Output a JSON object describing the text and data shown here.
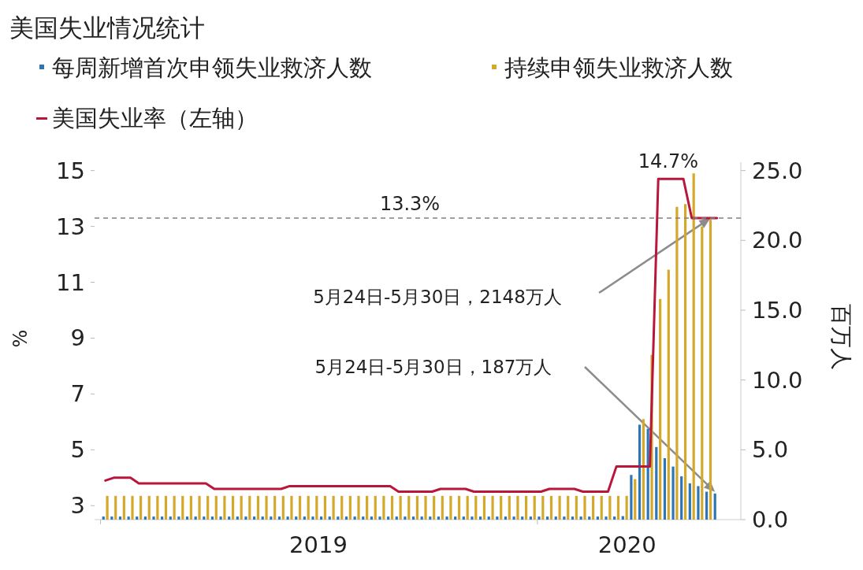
{
  "chart_data": {
    "type": "bar",
    "title": "美国失业情况统计",
    "x": [
      "2019-01-05",
      "2019-01-12",
      "2019-01-19",
      "2019-01-26",
      "2019-02-02",
      "2019-02-09",
      "2019-02-16",
      "2019-02-23",
      "2019-03-02",
      "2019-03-09",
      "2019-03-16",
      "2019-03-23",
      "2019-03-30",
      "2019-04-06",
      "2019-04-13",
      "2019-04-20",
      "2019-04-27",
      "2019-05-04",
      "2019-05-11",
      "2019-05-18",
      "2019-05-25",
      "2019-06-01",
      "2019-06-08",
      "2019-06-15",
      "2019-06-22",
      "2019-06-29",
      "2019-07-06",
      "2019-07-13",
      "2019-07-20",
      "2019-07-27",
      "2019-08-03",
      "2019-08-10",
      "2019-08-17",
      "2019-08-24",
      "2019-08-31",
      "2019-09-07",
      "2019-09-14",
      "2019-09-21",
      "2019-09-28",
      "2019-10-05",
      "2019-10-12",
      "2019-10-19",
      "2019-10-26",
      "2019-11-02",
      "2019-11-09",
      "2019-11-16",
      "2019-11-23",
      "2019-11-30",
      "2019-12-07",
      "2019-12-14",
      "2019-12-21",
      "2019-12-28",
      "2020-01-04",
      "2020-01-11",
      "2020-01-18",
      "2020-01-25",
      "2020-02-01",
      "2020-02-08",
      "2020-02-15",
      "2020-02-22",
      "2020-02-29",
      "2020-03-07",
      "2020-03-14",
      "2020-03-21",
      "2020-03-28",
      "2020-04-04",
      "2020-04-11",
      "2020-04-18",
      "2020-04-25",
      "2020-05-02",
      "2020-05-09",
      "2020-05-16",
      "2020-05-23",
      "2020-05-30"
    ],
    "series": [
      {
        "name": "每周新增首次申领失业救济人数",
        "axis": "y2",
        "color": "#2e75b6",
        "values": [
          0.22,
          0.22,
          0.22,
          0.22,
          0.22,
          0.22,
          0.22,
          0.22,
          0.22,
          0.22,
          0.22,
          0.22,
          0.22,
          0.22,
          0.22,
          0.22,
          0.22,
          0.22,
          0.22,
          0.22,
          0.22,
          0.22,
          0.22,
          0.22,
          0.22,
          0.22,
          0.22,
          0.22,
          0.22,
          0.22,
          0.22,
          0.22,
          0.22,
          0.22,
          0.22,
          0.22,
          0.22,
          0.22,
          0.22,
          0.22,
          0.22,
          0.22,
          0.22,
          0.22,
          0.22,
          0.22,
          0.22,
          0.22,
          0.22,
          0.22,
          0.22,
          0.22,
          0.22,
          0.22,
          0.22,
          0.22,
          0.22,
          0.22,
          0.22,
          0.22,
          0.22,
          0.22,
          0.25,
          3.2,
          6.8,
          6.5,
          5.2,
          4.4,
          3.8,
          3.1,
          2.6,
          2.4,
          2.0,
          1.87
        ]
      },
      {
        "name": "持续申领失业救济人数",
        "axis": "y2",
        "color": "#d4a82a",
        "values": [
          1.7,
          1.7,
          1.7,
          1.7,
          1.7,
          1.7,
          1.7,
          1.7,
          1.7,
          1.7,
          1.7,
          1.7,
          1.7,
          1.7,
          1.7,
          1.7,
          1.7,
          1.7,
          1.7,
          1.7,
          1.7,
          1.7,
          1.7,
          1.7,
          1.7,
          1.7,
          1.7,
          1.7,
          1.7,
          1.7,
          1.7,
          1.7,
          1.7,
          1.7,
          1.7,
          1.7,
          1.7,
          1.7,
          1.7,
          1.7,
          1.7,
          1.7,
          1.7,
          1.7,
          1.7,
          1.7,
          1.7,
          1.7,
          1.7,
          1.7,
          1.7,
          1.7,
          1.7,
          1.7,
          1.7,
          1.7,
          1.7,
          1.7,
          1.7,
          1.7,
          1.7,
          1.7,
          1.7,
          2.9,
          7.2,
          11.8,
          15.8,
          17.9,
          22.4,
          22.6,
          24.8,
          21.0,
          21.48,
          null
        ]
      },
      {
        "name": "美国失业率（左轴）",
        "type": "line",
        "color": "#b8173b",
        "values": [
          3.9,
          4.0,
          4.0,
          4.0,
          3.8,
          3.8,
          3.8,
          3.8,
          3.8,
          3.8,
          3.8,
          3.8,
          3.8,
          3.6,
          3.6,
          3.6,
          3.6,
          3.6,
          3.6,
          3.6,
          3.6,
          3.6,
          3.7,
          3.7,
          3.7,
          3.7,
          3.7,
          3.7,
          3.7,
          3.7,
          3.7,
          3.7,
          3.7,
          3.7,
          3.7,
          3.5,
          3.5,
          3.5,
          3.5,
          3.5,
          3.6,
          3.6,
          3.6,
          3.6,
          3.5,
          3.5,
          3.5,
          3.5,
          3.5,
          3.5,
          3.5,
          3.5,
          3.5,
          3.6,
          3.6,
          3.6,
          3.6,
          3.5,
          3.5,
          3.5,
          3.5,
          4.4,
          4.4,
          4.4,
          4.4,
          4.4,
          14.7,
          14.7,
          14.7,
          14.7,
          13.3,
          13.3,
          13.3,
          13.3
        ]
      }
    ],
    "xlim": [
      "2018-12-27",
      "2020-06-19"
    ],
    "xticks": [
      {
        "value": "2019-01-01",
        "label": null
      },
      {
        "value": "2019-07-02",
        "label": "2019"
      },
      {
        "value": "2020-01-01",
        "label": null
      },
      {
        "value": "2020-03-16",
        "label": "2020"
      }
    ],
    "ylabel": "%",
    "y2label": "百万人",
    "ylim": [
      2.5,
      15.3
    ],
    "yticks": [
      3,
      5,
      7,
      9,
      11,
      13,
      15
    ],
    "y2lim": [
      0,
      25.6
    ],
    "y2ticks": [
      {
        "value": 0,
        "label": "0.0"
      },
      {
        "value": 5,
        "label": "5.0"
      },
      {
        "value": 10,
        "label": "10.0"
      },
      {
        "value": 15,
        "label": "15.0"
      },
      {
        "value": 20,
        "label": "20.0"
      },
      {
        "value": 25,
        "label": "25.0"
      }
    ],
    "ref_lines": [
      {
        "axis": "y",
        "value": 13.3,
        "label": "13.3%",
        "color": "#808080",
        "line_style": "dashed"
      }
    ],
    "annotations": [
      {
        "text": "14.7%",
        "x": "2020-04-18",
        "y": 14.7
      },
      "5月24日-5月30日，2148万人",
      "5月24日-5月30日，187万人"
    ],
    "legend": "top",
    "grid": false
  }
}
